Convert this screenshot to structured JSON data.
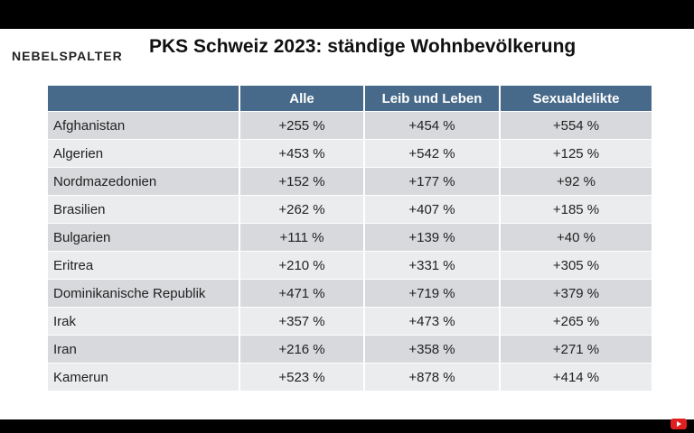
{
  "logo": "NEBELSPALTER",
  "title": "PKS Schweiz 2023: ständige Wohnbevölkerung",
  "table": {
    "headers": [
      "",
      "Alle",
      "Leib und Leben",
      "Sexualdelikte"
    ],
    "rows": [
      [
        "Afghanistan",
        "+255 %",
        "+454 %",
        "+554 %"
      ],
      [
        "Algerien",
        "+453 %",
        "+542 %",
        "+125 %"
      ],
      [
        "Nordmazedonien",
        "+152 %",
        "+177 %",
        "+92 %"
      ],
      [
        "Brasilien",
        "+262 %",
        "+407 %",
        "+185 %"
      ],
      [
        "Bulgarien",
        "+111 %",
        "+139 %",
        "+40 %"
      ],
      [
        "Eritrea",
        "+210 %",
        "+331 %",
        "+305 %"
      ],
      [
        "Dominikanische Republik",
        "+471 %",
        "+719 %",
        "+379 %"
      ],
      [
        "Irak",
        "+357 %",
        "+473 %",
        "+265 %"
      ],
      [
        "Iran",
        "+216 %",
        "+358 %",
        "+271 %"
      ],
      [
        "Kamerun",
        "+523 %",
        "+878 %",
        "+414 %"
      ]
    ]
  },
  "colors": {
    "header": "#476a8a",
    "row_dark": "#d8d9dc",
    "row_light": "#ebecee"
  }
}
